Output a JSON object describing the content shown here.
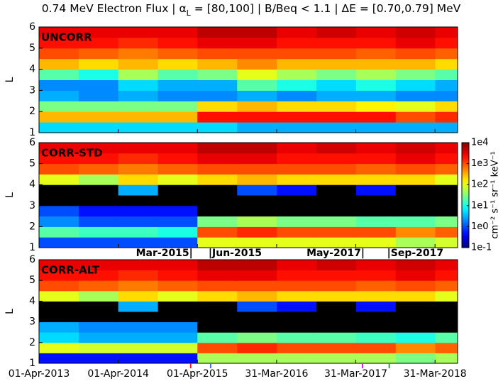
{
  "chart_data": {
    "type": "heatmap",
    "title": [
      "0.74 MeV Electron Flux | α",
      "L",
      " = [80,100] | B/Beq < 1.1 | ΔE = [0.70,0.79] MeV"
    ],
    "ylabel": "L",
    "x_bins": [
      "2013-04-01",
      "2013-10-01",
      "2014-04-01",
      "2014-10-01",
      "2015-04-01",
      "2015-10-01",
      "2016-04-01",
      "2016-10-01",
      "2017-04-01",
      "2017-10-01",
      "2018-04-01",
      "2018-07-13"
    ],
    "y_bins": [
      1,
      1.5,
      2,
      2.5,
      3,
      3.5,
      4,
      4.5,
      5,
      5.5,
      6
    ],
    "xlim": [
      "2013-04-01",
      "2018-07-13"
    ],
    "xticks": [
      {
        "value": "2013-04-01",
        "label": "01-Apr-2013"
      },
      {
        "value": "2014-04-01",
        "label": "01-Apr-2014"
      },
      {
        "value": "2015-04-01",
        "label": "01-Apr-2015"
      },
      {
        "value": "2016-03-31",
        "label": "31-Mar-2016"
      },
      {
        "value": "2017-03-31",
        "label": "31-Mar-2017"
      },
      {
        "value": "2018-03-31",
        "label": "31-Mar-2018"
      }
    ],
    "ylim": [
      1,
      6
    ],
    "yticks": [
      1,
      2,
      3,
      4,
      5,
      6
    ],
    "colorbar": {
      "label": "cm⁻² s⁻¹ sr⁻¹ keV⁻¹",
      "log": true,
      "colormap": "jet",
      "under_color": "#000000",
      "zlim": [
        0.1,
        10000
      ],
      "zticks": [
        {
          "value": 0.1,
          "label": "1e-1"
        },
        {
          "value": 1,
          "label": "1e0"
        },
        {
          "value": 10,
          "label": "1e1"
        },
        {
          "value": 100,
          "label": "1e2"
        },
        {
          "value": 1000,
          "label": "1e3"
        },
        {
          "value": 10000,
          "label": "1e4"
        }
      ]
    },
    "panels": [
      {
        "label": "UNCORR",
        "z": [
          [
            5,
            5,
            5,
            5,
            5,
            3,
            3,
            3,
            3,
            3,
            3
          ],
          [
            300,
            300,
            300,
            300,
            2000,
            2000,
            2000,
            2000,
            2000,
            1000,
            1500
          ],
          [
            30,
            30,
            30,
            30,
            200,
            300,
            200,
            200,
            150,
            100,
            200
          ],
          [
            3,
            2,
            3,
            2,
            2,
            3,
            2,
            3,
            3,
            2,
            2
          ],
          [
            2,
            2,
            5,
            3,
            3,
            20,
            10,
            5,
            10,
            5,
            3
          ],
          [
            20,
            10,
            50,
            20,
            30,
            100,
            50,
            30,
            50,
            30,
            20
          ],
          [
            300,
            200,
            300,
            200,
            300,
            500,
            300,
            300,
            300,
            300,
            200
          ],
          [
            1000,
            800,
            600,
            800,
            1000,
            1000,
            1000,
            1000,
            800,
            1000,
            800
          ],
          [
            2000,
            2000,
            1500,
            2000,
            3000,
            3000,
            2000,
            2000,
            2000,
            3000,
            2000
          ],
          [
            3000,
            3000,
            3000,
            3000,
            5000,
            5000,
            3000,
            4000,
            3000,
            4000,
            3000
          ]
        ]
      },
      {
        "label": "CORR-STD",
        "z": [
          [
            1,
            1,
            1,
            1,
            100,
            100,
            100,
            100,
            100,
            50,
            80
          ],
          [
            20,
            15,
            15,
            10,
            1000,
            1500,
            1000,
            1000,
            1000,
            500,
            800
          ],
          [
            2,
            1,
            1,
            1,
            30,
            50,
            30,
            30,
            20,
            20,
            30
          ],
          [
            1,
            0.5,
            0.5,
            0.5,
            0.05,
            0.05,
            0.05,
            0.05,
            0.05,
            0.05,
            0.05
          ],
          [
            0.05,
            0.05,
            0.05,
            0.05,
            0.05,
            0.05,
            0.05,
            0.05,
            0.05,
            0.05,
            0.05
          ],
          [
            0.05,
            0.05,
            3,
            0.05,
            0.05,
            1,
            0.5,
            0.05,
            0.5,
            0.05,
            0.05
          ],
          [
            100,
            50,
            200,
            100,
            200,
            300,
            200,
            200,
            200,
            200,
            100
          ],
          [
            1000,
            800,
            600,
            800,
            1000,
            1000,
            1000,
            1000,
            800,
            1000,
            800
          ],
          [
            2000,
            2000,
            1500,
            2000,
            3000,
            3000,
            2000,
            2000,
            2000,
            3000,
            2000
          ],
          [
            3000,
            3000,
            3000,
            3000,
            5000,
            5000,
            3000,
            4000,
            3000,
            4000,
            3000
          ]
        ]
      },
      {
        "label": "CORR-ALT",
        "z": [
          [
            0.5,
            0.5,
            0.5,
            0.5,
            50,
            50,
            50,
            50,
            50,
            30,
            50
          ],
          [
            100,
            80,
            80,
            80,
            1000,
            1500,
            1000,
            1000,
            1000,
            500,
            800
          ],
          [
            5,
            3,
            3,
            3,
            20,
            30,
            20,
            20,
            15,
            10,
            20
          ],
          [
            3,
            2,
            2,
            2,
            0.05,
            0.05,
            0.05,
            0.05,
            0.05,
            0.05,
            0.05
          ],
          [
            0.05,
            0.05,
            0.05,
            0.05,
            0.05,
            0.05,
            0.05,
            0.05,
            0.05,
            0.05,
            0.05
          ],
          [
            0.05,
            0.05,
            3,
            0.05,
            0.05,
            1,
            0.5,
            0.05,
            0.5,
            0.05,
            0.05
          ],
          [
            100,
            50,
            200,
            100,
            200,
            300,
            200,
            200,
            200,
            200,
            100
          ],
          [
            1000,
            800,
            600,
            800,
            1000,
            1000,
            1000,
            1000,
            800,
            1000,
            800
          ],
          [
            2000,
            2000,
            1500,
            2000,
            3000,
            3000,
            2000,
            2000,
            2000,
            3000,
            2000
          ],
          [
            3000,
            3000,
            3000,
            3000,
            5000,
            5000,
            3000,
            4000,
            3000,
            4000,
            3000
          ]
        ]
      }
    ],
    "annotations": [
      {
        "text": "Mar-2015|",
        "x": "2015-03",
        "color": "#e8202a"
      },
      {
        "text": "|Jun-2015",
        "x": "2015-06",
        "color": "#4f6fd8"
      },
      {
        "text": "May-2017|",
        "x": "2017-05",
        "color": "#e020e0"
      },
      {
        "text": "|Sep-2017",
        "x": "2017-09",
        "color": "#22a838"
      }
    ]
  }
}
